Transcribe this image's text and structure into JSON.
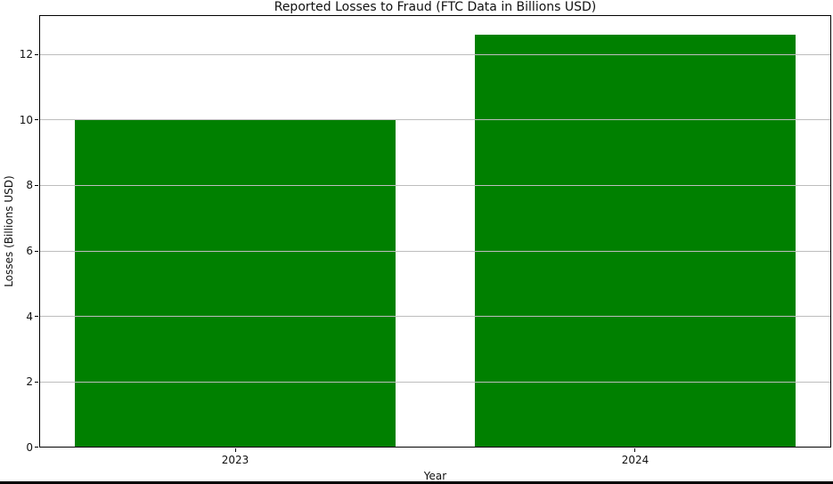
{
  "window": {
    "background": "#ffffff",
    "bottom_edge_color": "#000000"
  },
  "chart_data": {
    "type": "bar",
    "title": "Reported Losses to Fraud (FTC Data in Billions USD)",
    "xlabel": "Year",
    "ylabel": "Losses (Billions USD)",
    "categories": [
      "2023",
      "2024"
    ],
    "values": [
      10.0,
      12.6
    ],
    "yticks": [
      0,
      2,
      4,
      6,
      8,
      10,
      12
    ],
    "ytick_labels": [
      "0",
      "2",
      "4",
      "6",
      "8",
      "10",
      "12"
    ],
    "ylim": [
      0,
      13.2
    ],
    "grid": "horizontal",
    "grid_on": true,
    "legend": "none",
    "bar_color": "#008000",
    "grid_color": "#bdbdbd",
    "spine_color": "#000000",
    "bar_width_fraction": 0.8
  }
}
